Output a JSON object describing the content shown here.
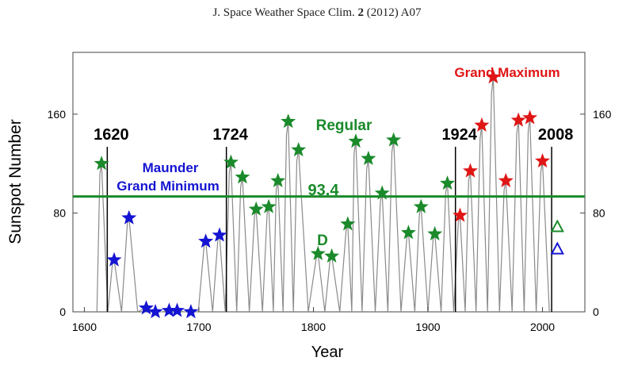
{
  "header": {
    "journal": "J. Space Weather Space Clim.",
    "volume": "2",
    "rest": "(2012) A07"
  },
  "chart_data": {
    "type": "line",
    "title": "",
    "xlabel": "Year",
    "ylabel": "Sunspot Number",
    "xlim": [
      1590,
      2037
    ],
    "ylim": [
      0,
      210
    ],
    "x_ticks": [
      "1600",
      "1700",
      "1800",
      "1900",
      "2000"
    ],
    "y_ticks_left": [
      "0",
      "80",
      "160"
    ],
    "y_ticks_right": [
      "0",
      "80",
      "160"
    ],
    "mean_line": {
      "value": 93.4,
      "label": "93.4",
      "color": "#1a8a2a"
    },
    "reference_years": [
      {
        "year": 1620,
        "label": "1620"
      },
      {
        "year": 1724,
        "label": "1724"
      },
      {
        "year": 1924,
        "label": "1924"
      },
      {
        "year": 2008,
        "label": "2008"
      }
    ],
    "annotations": {
      "maunder": [
        "Maunder",
        "Grand Minimum"
      ],
      "regular": "Regular",
      "grand_maximum": "Grand Maximum",
      "dip": "D"
    },
    "colors": {
      "maunder": "#1414d2",
      "regular": "#1a8a2a",
      "grand_max": "#e01515",
      "curve": "#8a8a8a"
    },
    "series": [
      {
        "name": "Maunder Grand Minimum",
        "color": "#1414d2",
        "marker": "star",
        "x": [
          1626,
          1639,
          1654,
          1662,
          1674,
          1681,
          1693,
          1706,
          1718
        ],
        "y": [
          42,
          76,
          3,
          0,
          1,
          1,
          0,
          57,
          62
        ]
      },
      {
        "name": "Regular",
        "color": "#1a8a2a",
        "marker": "star",
        "x": [
          1615,
          1728,
          1738,
          1750,
          1761,
          1769,
          1778,
          1787,
          1804,
          1816,
          1830,
          1837,
          1848,
          1860,
          1870,
          1883,
          1894,
          1906,
          1917
        ],
        "y": [
          120,
          121,
          109,
          83,
          85,
          106,
          154,
          131,
          47,
          45,
          71,
          138,
          124,
          96,
          139,
          64,
          85,
          63,
          104
        ]
      },
      {
        "name": "Grand Maximum",
        "color": "#e01515",
        "marker": "star",
        "x": [
          1928,
          1937,
          1947,
          1957,
          1968,
          1979,
          1989,
          2000
        ],
        "y": [
          78,
          114,
          151,
          190,
          106,
          155,
          157,
          122
        ]
      },
      {
        "name": "2008 markers",
        "marker": "triangle",
        "x": [
          2013,
          2013
        ],
        "y": [
          69,
          51
        ],
        "colors": [
          "#1a8a2a",
          "#1414d2"
        ]
      }
    ]
  }
}
